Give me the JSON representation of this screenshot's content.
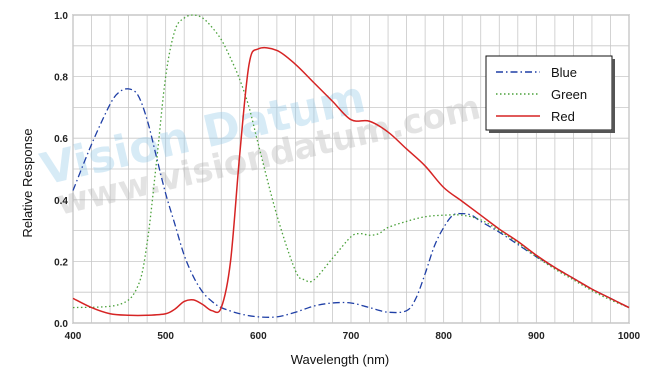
{
  "watermark": {
    "brand": "Vision Datum",
    "url": "www.visiondatum.com"
  },
  "chart_data": {
    "type": "line",
    "title": "",
    "xlabel": "Wavelength (nm)",
    "ylabel": "Relative Response",
    "xlim": [
      400,
      1000
    ],
    "ylim": [
      0,
      1.0
    ],
    "xticks": [
      400,
      500,
      600,
      700,
      800,
      900,
      1000
    ],
    "yticks": [
      0.0,
      0.2,
      0.4,
      0.6,
      0.8,
      1.0
    ],
    "ytick_labels": [
      "0.0",
      "0.2",
      "0.4",
      "0.6",
      "0.8",
      "1.0"
    ],
    "grid": true,
    "legend_position": "top-right",
    "series": [
      {
        "name": "Blue",
        "color": "#1f3fa6",
        "style": "dashdot",
        "x": [
          400,
          420,
          440,
          450,
          460,
          470,
          480,
          490,
          500,
          510,
          520,
          530,
          540,
          550,
          560,
          580,
          600,
          620,
          640,
          660,
          680,
          700,
          720,
          740,
          760,
          770,
          780,
          790,
          800,
          810,
          820,
          830,
          840,
          860,
          880,
          900,
          920,
          940,
          960,
          980,
          1000
        ],
        "y": [
          0.43,
          0.58,
          0.71,
          0.75,
          0.76,
          0.74,
          0.66,
          0.54,
          0.42,
          0.32,
          0.22,
          0.15,
          0.1,
          0.07,
          0.05,
          0.03,
          0.02,
          0.02,
          0.035,
          0.055,
          0.065,
          0.065,
          0.05,
          0.035,
          0.04,
          0.08,
          0.16,
          0.25,
          0.31,
          0.35,
          0.355,
          0.35,
          0.33,
          0.295,
          0.255,
          0.215,
          0.18,
          0.145,
          0.11,
          0.08,
          0.05
        ]
      },
      {
        "name": "Green",
        "color": "#4aa13a",
        "style": "dotted",
        "x": [
          400,
          450,
          470,
          480,
          490,
          500,
          510,
          520,
          530,
          540,
          550,
          560,
          570,
          580,
          590,
          600,
          620,
          640,
          650,
          660,
          680,
          700,
          710,
          720,
          730,
          740,
          760,
          780,
          800,
          820,
          840,
          860,
          880,
          900,
          920,
          940,
          960,
          980,
          1000
        ],
        "y": [
          0.05,
          0.06,
          0.12,
          0.26,
          0.52,
          0.8,
          0.95,
          0.99,
          1.0,
          0.99,
          0.96,
          0.92,
          0.86,
          0.79,
          0.7,
          0.58,
          0.35,
          0.17,
          0.14,
          0.14,
          0.21,
          0.28,
          0.29,
          0.285,
          0.29,
          0.31,
          0.33,
          0.345,
          0.35,
          0.35,
          0.335,
          0.3,
          0.26,
          0.215,
          0.175,
          0.14,
          0.105,
          0.075,
          0.05
        ]
      },
      {
        "name": "Red",
        "color": "#d62424",
        "style": "solid",
        "x": [
          400,
          420,
          440,
          460,
          480,
          500,
          510,
          520,
          530,
          540,
          550,
          560,
          570,
          580,
          590,
          600,
          620,
          640,
          660,
          680,
          700,
          720,
          740,
          760,
          780,
          800,
          820,
          840,
          860,
          880,
          900,
          920,
          940,
          960,
          980,
          1000
        ],
        "y": [
          0.08,
          0.05,
          0.03,
          0.025,
          0.025,
          0.03,
          0.045,
          0.07,
          0.075,
          0.06,
          0.04,
          0.05,
          0.2,
          0.55,
          0.84,
          0.89,
          0.885,
          0.84,
          0.78,
          0.72,
          0.66,
          0.655,
          0.62,
          0.565,
          0.51,
          0.44,
          0.395,
          0.35,
          0.305,
          0.265,
          0.22,
          0.18,
          0.145,
          0.11,
          0.08,
          0.05
        ]
      }
    ]
  }
}
